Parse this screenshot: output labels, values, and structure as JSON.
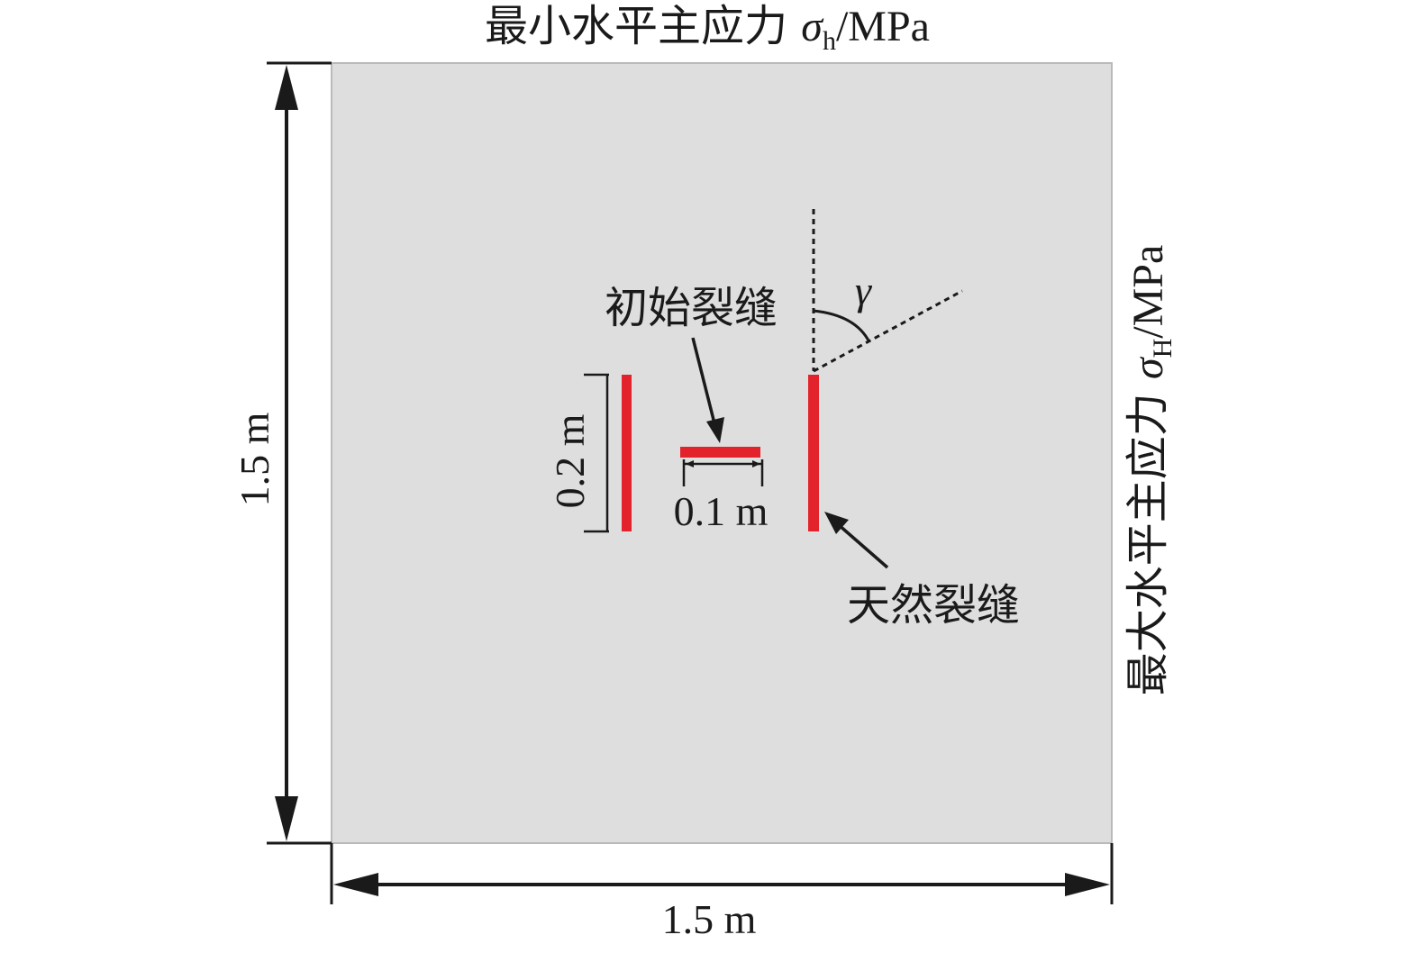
{
  "top_label": {
    "prefix": "最小水平主应力 ",
    "symbol": "σ",
    "subscript": "h",
    "suffix": "/MPa"
  },
  "right_label": {
    "prefix": "最大水平主应力 ",
    "symbol": "σ",
    "subscript": "H",
    "suffix": "/MPa"
  },
  "dimensions": {
    "left_height": "1.5 m",
    "bottom_width": "1.5 m",
    "fracture_height": "0.2 m",
    "initial_fracture_width": "0.1 m"
  },
  "annotations": {
    "initial_fracture": "初始裂缝",
    "natural_fracture": "天然裂缝",
    "angle_symbol": "γ"
  },
  "colors": {
    "background": "#dddedd",
    "fracture": "#e3232c",
    "line": "#1a1a1a"
  }
}
